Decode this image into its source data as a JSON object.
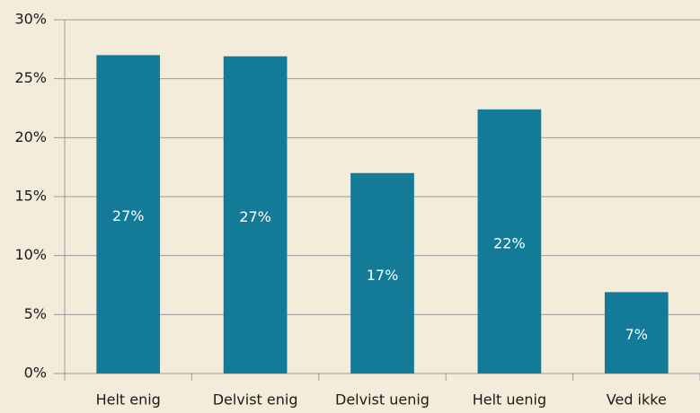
{
  "chart_data": {
    "type": "bar",
    "categories": [
      "Helt enig",
      "Delvist enig",
      "Delvist uenig",
      "Helt uenig",
      "Ved ikke"
    ],
    "values": [
      27.0,
      26.9,
      17.0,
      22.4,
      6.9
    ],
    "value_labels": [
      "27%",
      "27%",
      "17%",
      "22%",
      "7%"
    ],
    "color": "#137a98",
    "ylim": [
      0,
      30
    ],
    "yticks": [
      {
        "value": 0,
        "label": "0%"
      },
      {
        "value": 5,
        "label": "5%"
      },
      {
        "value": 10,
        "label": "10%"
      },
      {
        "value": 15,
        "label": "15%"
      },
      {
        "value": 20,
        "label": "20%"
      },
      {
        "value": 25,
        "label": "25%"
      },
      {
        "value": 30,
        "label": "30%"
      }
    ],
    "grid": true
  }
}
